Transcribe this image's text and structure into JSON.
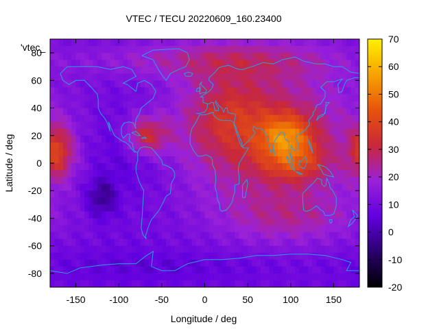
{
  "chart_data": {
    "type": "heatmap",
    "title": "VTEC / TECU 20220609_160.23400",
    "xlabel": "Longitude / deg",
    "ylabel": "Latitude / deg",
    "key_label": "'vtec_",
    "xlim": [
      -180,
      180
    ],
    "ylim": [
      -90,
      90
    ],
    "x_ticks": [
      -150,
      -100,
      -50,
      0,
      50,
      100,
      150
    ],
    "y_ticks": [
      -80,
      -60,
      -40,
      -20,
      0,
      20,
      40,
      60,
      80
    ],
    "colorbar": {
      "range": [
        -20,
        70
      ],
      "ticks": [
        -20,
        -10,
        0,
        10,
        20,
        30,
        40,
        50,
        60,
        70
      ],
      "palette": [
        "#000000",
        "#2a006e",
        "#6200e0",
        "#9a21d8",
        "#c9283a",
        "#e8530b",
        "#f7a300",
        "#fff000"
      ]
    },
    "coastline_color": "#2aa0e0",
    "grid": false,
    "field_peaks": [
      {
        "lon": 95,
        "lat": 20,
        "value": 55
      },
      {
        "lon": 100,
        "lat": 0,
        "value": 48
      },
      {
        "lon": -170,
        "lat": 10,
        "value": 42
      },
      {
        "lon": -65,
        "lat": 20,
        "value": 33
      },
      {
        "lon": 20,
        "lat": 30,
        "value": 32
      },
      {
        "lon": -120,
        "lat": -25,
        "value": 0
      }
    ]
  }
}
